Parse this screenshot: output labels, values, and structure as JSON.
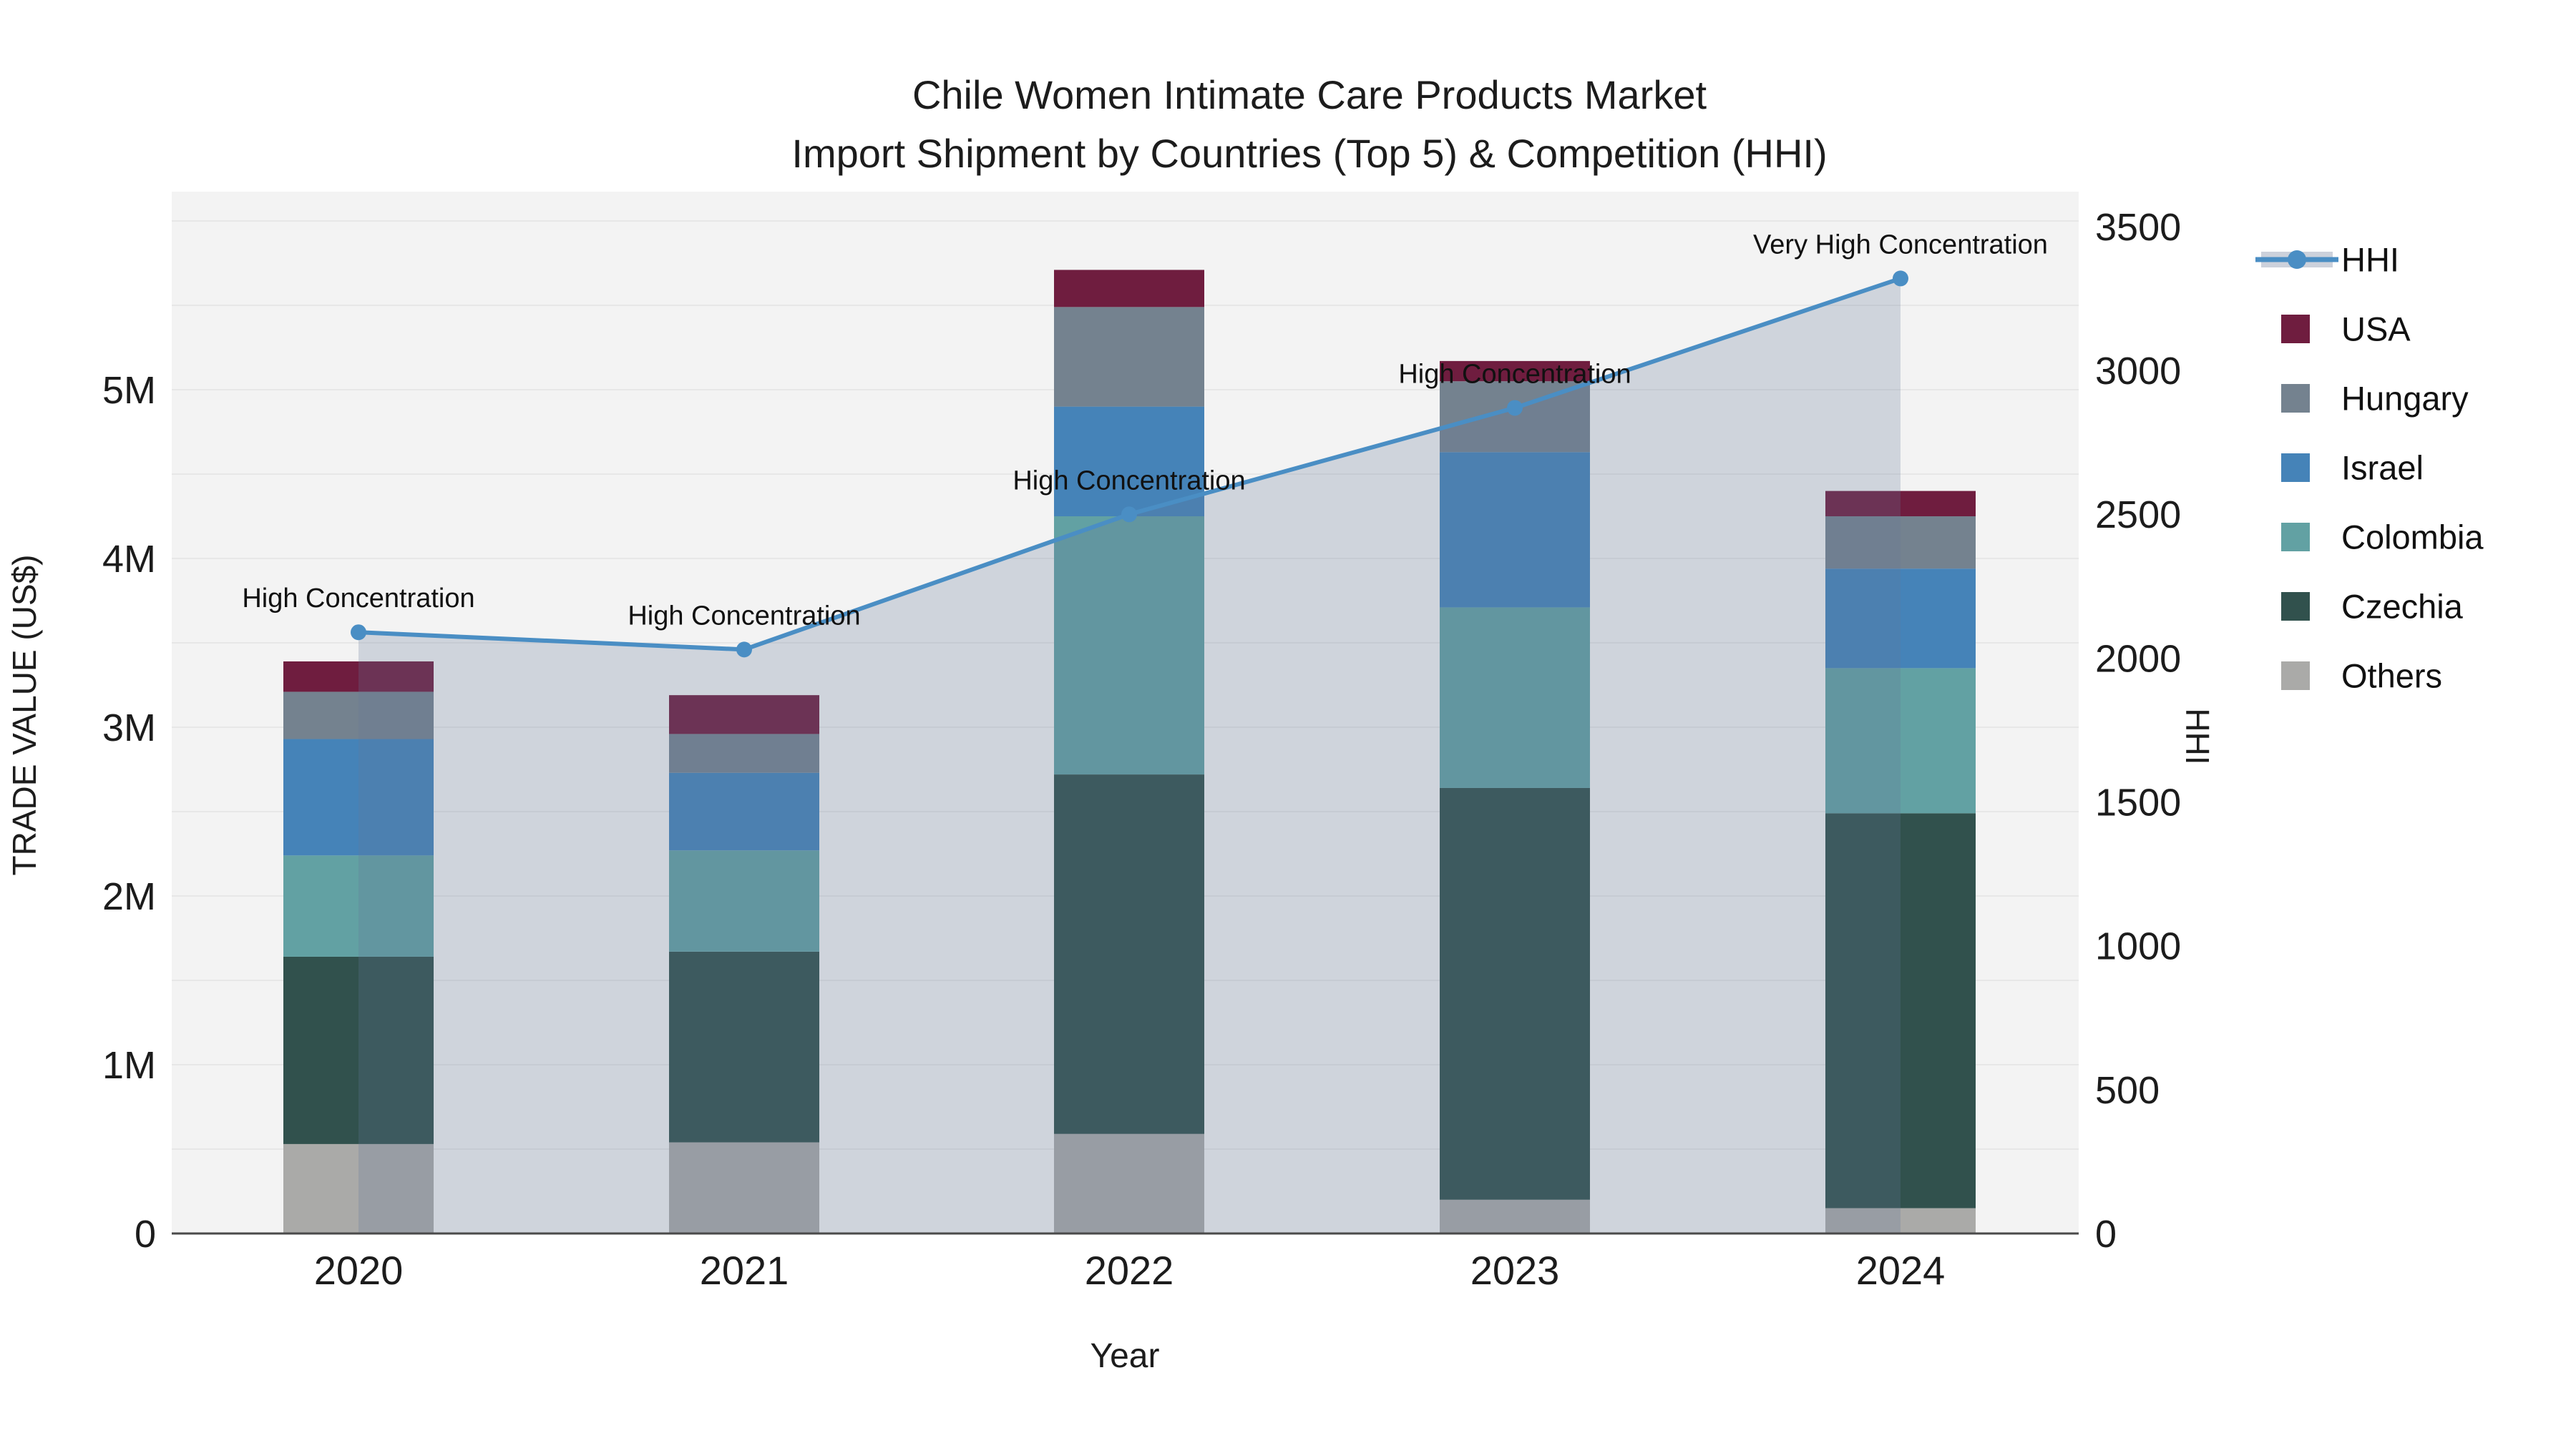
{
  "chart_data": {
    "type": "combo-stacked-bar-line",
    "title_lines": [
      "Chile Women Intimate Care Products Market",
      "Import Shipment by Countries (Top 5) & Competition (HHI)"
    ],
    "xlabel": "Year",
    "ylabel_left": "TRADE VALUE (US$)",
    "ylabel_right": "HHI",
    "categories": [
      "2020",
      "2021",
      "2022",
      "2023",
      "2024"
    ],
    "value_unit": "million US$",
    "stack_order_bottom_to_top": [
      "Others",
      "Czechia",
      "Colombia",
      "Israel",
      "Hungary",
      "USA"
    ],
    "series": [
      {
        "name": "Others",
        "color": "#aaaaa8",
        "values": [
          0.53,
          0.54,
          0.59,
          0.2,
          0.15
        ]
      },
      {
        "name": "Czechia",
        "color": "#31514d",
        "values": [
          1.11,
          1.13,
          2.13,
          2.44,
          2.34
        ]
      },
      {
        "name": "Colombia",
        "color": "#62a1a3",
        "values": [
          0.6,
          0.6,
          1.53,
          1.07,
          0.86
        ]
      },
      {
        "name": "Israel",
        "color": "#4583b8",
        "values": [
          0.69,
          0.46,
          0.65,
          0.92,
          0.59
        ]
      },
      {
        "name": "Hungary",
        "color": "#74828f",
        "values": [
          0.28,
          0.23,
          0.59,
          0.42,
          0.31
        ]
      },
      {
        "name": "USA",
        "color": "#6f1d3f",
        "values": [
          0.18,
          0.23,
          0.22,
          0.12,
          0.15
        ]
      }
    ],
    "bar_totals": [
      3.39,
      3.19,
      5.71,
      5.17,
      4.4
    ],
    "hhi": {
      "name": "HHI",
      "values": [
        2090,
        2030,
        2500,
        2870,
        3320
      ],
      "line_color": "#4a8ec4",
      "area_fill": "rgba(100,120,150,0.25)",
      "legend_band_color": "#ccd1db"
    },
    "annotations": [
      {
        "x": "2020",
        "text": "High Concentration"
      },
      {
        "x": "2021",
        "text": "High Concentration"
      },
      {
        "x": "2022",
        "text": "High Concentration"
      },
      {
        "x": "2023",
        "text": "High Concentration"
      },
      {
        "x": "2024",
        "text": "Very High Concentration"
      }
    ],
    "y_left_ticks": [
      "0",
      "1M",
      "2M",
      "3M",
      "4M",
      "5M"
    ],
    "y_left_tick_values": [
      0,
      1,
      2,
      3,
      4,
      5
    ],
    "y_right_ticks": [
      "0",
      "500",
      "1000",
      "1500",
      "2000",
      "2500",
      "3000",
      "3500"
    ],
    "y_right_tick_values": [
      0,
      500,
      1000,
      1500,
      2000,
      2500,
      3000,
      3500
    ],
    "axis_ranges": {
      "left_max_million_usd": 6.17,
      "right_max_hhi": 3622
    },
    "legend_position": "right",
    "legend_items": [
      "HHI",
      "USA",
      "Hungary",
      "Israel",
      "Colombia",
      "Czechia",
      "Others"
    ],
    "grid": true,
    "colors": {
      "plot_background": "#f3f3f3",
      "gridline": "#e7e7e7",
      "axis_line": "#4a4a4a",
      "text": "#1c1c1c"
    }
  }
}
